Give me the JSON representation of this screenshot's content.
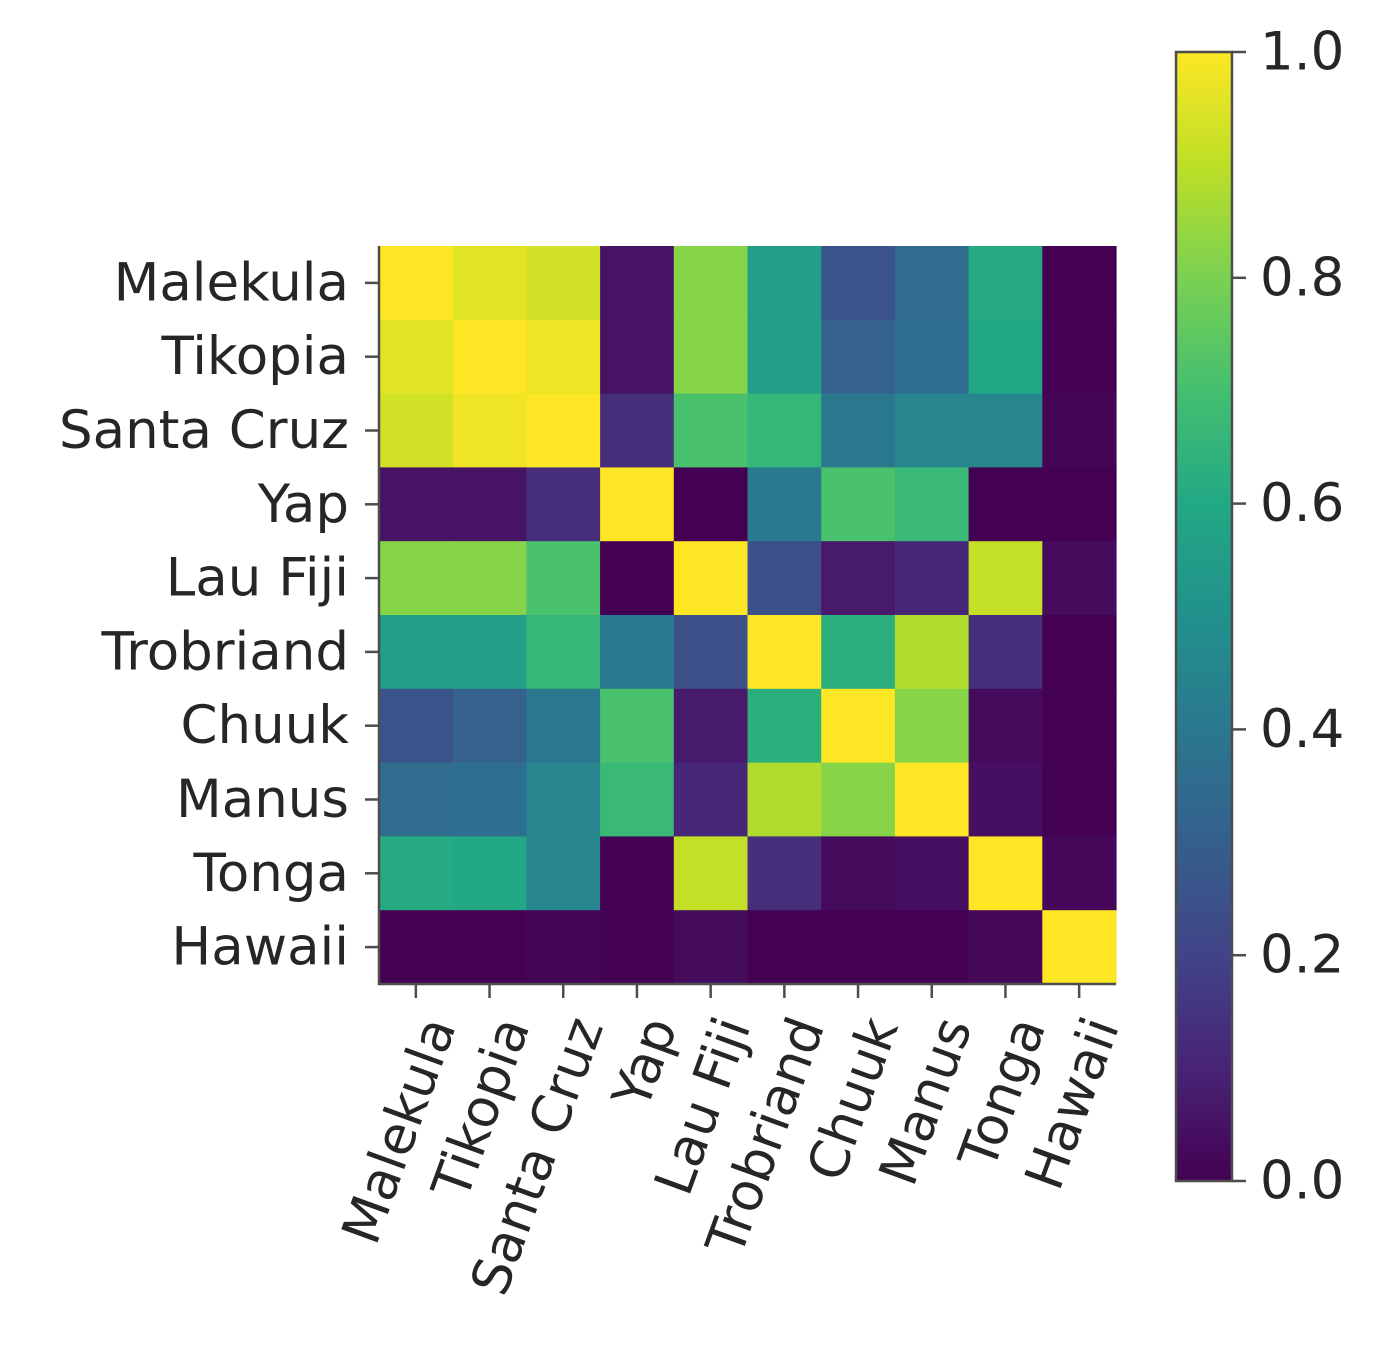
{
  "chart_data": {
    "type": "heatmap",
    "title": "",
    "xlabel": "",
    "ylabel": "",
    "rows": [
      "Malekula",
      "Tikopia",
      "Santa Cruz",
      "Yap",
      "Lau Fiji",
      "Trobriand",
      "Chuuk",
      "Manus",
      "Tonga",
      "Hawaii"
    ],
    "columns": [
      "Malekula",
      "Tikopia",
      "Santa Cruz",
      "Yap",
      "Lau Fiji",
      "Trobriand",
      "Chuuk",
      "Manus",
      "Tonga",
      "Hawaii"
    ],
    "values": [
      [
        1.0,
        0.96,
        0.93,
        0.05,
        0.82,
        0.56,
        0.26,
        0.35,
        0.61,
        0.0
      ],
      [
        0.96,
        1.0,
        0.98,
        0.05,
        0.82,
        0.56,
        0.31,
        0.36,
        0.6,
        0.0
      ],
      [
        0.93,
        0.98,
        1.0,
        0.13,
        0.71,
        0.66,
        0.4,
        0.45,
        0.45,
        0.01
      ],
      [
        0.05,
        0.05,
        0.13,
        1.0,
        0.0,
        0.41,
        0.71,
        0.67,
        0.0,
        0.0
      ],
      [
        0.82,
        0.82,
        0.71,
        0.0,
        1.0,
        0.24,
        0.07,
        0.11,
        0.91,
        0.03
      ],
      [
        0.56,
        0.56,
        0.66,
        0.41,
        0.24,
        1.0,
        0.63,
        0.88,
        0.13,
        0.0
      ],
      [
        0.26,
        0.31,
        0.4,
        0.71,
        0.07,
        0.63,
        1.0,
        0.82,
        0.03,
        0.0
      ],
      [
        0.35,
        0.36,
        0.45,
        0.67,
        0.11,
        0.88,
        0.82,
        1.0,
        0.04,
        0.0
      ],
      [
        0.61,
        0.6,
        0.45,
        0.0,
        0.91,
        0.13,
        0.03,
        0.04,
        1.0,
        0.02
      ],
      [
        0.0,
        0.0,
        0.01,
        0.0,
        0.03,
        0.0,
        0.0,
        0.0,
        0.02,
        1.0
      ]
    ],
    "colormap": "viridis",
    "vmin": 0.0,
    "vmax": 1.0,
    "colorbar_ticks": [
      "0.0",
      "0.2",
      "0.4",
      "0.6",
      "0.8",
      "1.0"
    ],
    "x_tick_rotation_deg": 70,
    "grid": false
  }
}
